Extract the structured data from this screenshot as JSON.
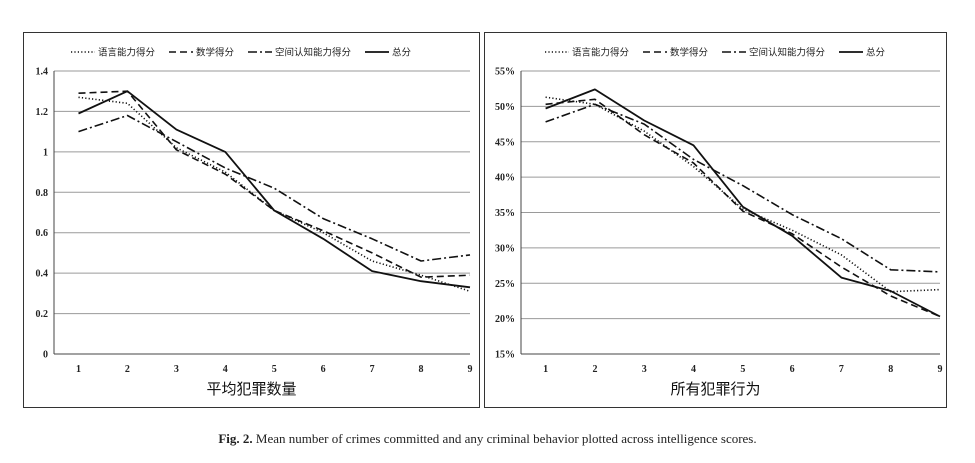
{
  "chart_data": [
    {
      "type": "line",
      "title": "平均犯罪数量",
      "categories": [
        "1",
        "2",
        "3",
        "4",
        "5",
        "6",
        "7",
        "8",
        "9"
      ],
      "ylim": [
        0,
        1.4
      ],
      "yticks": [
        "0",
        "0.2",
        "0.4",
        "0.6",
        "0.8",
        "1",
        "1.2",
        "1.4"
      ],
      "grid": true,
      "legend_position": "top",
      "series": [
        {
          "name": "语言能力得分",
          "style": "dotted",
          "values": [
            1.27,
            1.24,
            1.02,
            0.9,
            0.71,
            0.6,
            0.46,
            0.39,
            0.31
          ]
        },
        {
          "name": "数学得分",
          "style": "dashed",
          "values": [
            1.29,
            1.3,
            1.01,
            0.89,
            0.71,
            0.61,
            0.5,
            0.38,
            0.39
          ]
        },
        {
          "name": "空间认知能力得分",
          "style": "dashdot",
          "values": [
            1.1,
            1.18,
            1.05,
            0.92,
            0.82,
            0.67,
            0.57,
            0.46,
            0.49
          ]
        },
        {
          "name": "总分",
          "style": "solid",
          "values": [
            1.19,
            1.3,
            1.11,
            1.0,
            0.71,
            0.57,
            0.41,
            0.36,
            0.33
          ]
        }
      ]
    },
    {
      "type": "line",
      "title": "所有犯罪行为",
      "categories": [
        "1",
        "2",
        "3",
        "4",
        "5",
        "6",
        "7",
        "8",
        "9"
      ],
      "ylim": [
        15,
        55
      ],
      "yunit": "%",
      "yticks": [
        "15%",
        "20%",
        "25%",
        "30%",
        "35%",
        "40%",
        "45%",
        "50%",
        "55%"
      ],
      "grid": true,
      "legend_position": "top",
      "series": [
        {
          "name": "语言能力得分",
          "style": "dotted",
          "values": [
            51.3,
            50.3,
            46.5,
            41.5,
            35.5,
            32.5,
            29.0,
            23.8,
            24.1
          ]
        },
        {
          "name": "数学得分",
          "style": "dashed",
          "values": [
            50.3,
            51.0,
            46.0,
            42.0,
            35.2,
            32.0,
            27.3,
            23.2,
            20.3
          ]
        },
        {
          "name": "空间认知能力得分",
          "style": "dashdot",
          "values": [
            47.8,
            50.3,
            47.5,
            42.5,
            38.8,
            34.7,
            31.3,
            26.9,
            26.6
          ]
        },
        {
          "name": "总分",
          "style": "solid",
          "values": [
            49.7,
            52.4,
            48.0,
            44.5,
            35.8,
            31.7,
            25.8,
            23.9,
            20.3
          ]
        }
      ]
    }
  ],
  "caption": {
    "lead": "Fig. 2.",
    "text": " Mean number of crimes committed and any criminal behavior plotted across intelligence scores."
  }
}
